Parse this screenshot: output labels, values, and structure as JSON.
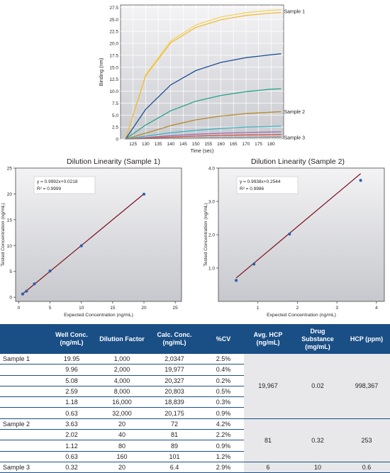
{
  "colors": {
    "table_header": "#1a4f86",
    "regression_line": "#7a1020",
    "points": "#2c5fae",
    "sensorgram": [
      "#f6d35a",
      "#f0bc3c",
      "#1f4f96",
      "#26a28c",
      "#b4892a",
      "#3fb5c4",
      "#9a6fb8",
      "#d0503c",
      "#888888"
    ]
  },
  "chart_data": [
    {
      "type": "line",
      "title": "",
      "xlabel": "Time (sec)",
      "ylabel": "Binding (nm)",
      "xlim": [
        120,
        185
      ],
      "ylim": [
        0,
        28
      ],
      "xticks": [
        125,
        130,
        135,
        140,
        145,
        150,
        155,
        160,
        165,
        170,
        175,
        180
      ],
      "yticks": [
        0,
        2.5,
        5.0,
        7.5,
        10.0,
        12.5,
        15.0,
        17.5,
        20.0,
        22.5,
        25.0,
        27.5
      ],
      "series": [
        {
          "x": [
            122,
            130,
            140,
            150,
            160,
            170,
            180,
            184
          ],
          "y": [
            0,
            13.4,
            20.5,
            23.8,
            25.5,
            26.4,
            26.9,
            27.0
          ],
          "color": "#f6d35a"
        },
        {
          "x": [
            122,
            130,
            140,
            150,
            160,
            170,
            180,
            184
          ],
          "y": [
            0,
            13.2,
            20.1,
            23.3,
            24.9,
            25.8,
            26.3,
            26.4
          ],
          "color": "#f0bc3c"
        },
        {
          "x": [
            122,
            130,
            140,
            150,
            160,
            170,
            180,
            184
          ],
          "y": [
            0,
            6.2,
            11.3,
            14.3,
            16.0,
            17.0,
            17.6,
            17.8
          ],
          "color": "#1f4f96"
        },
        {
          "x": [
            122,
            130,
            140,
            150,
            160,
            170,
            180,
            184
          ],
          "y": [
            0,
            2.9,
            5.9,
            7.9,
            9.1,
            9.9,
            10.4,
            10.5
          ],
          "color": "#26a28c"
        },
        {
          "x": [
            122,
            130,
            140,
            150,
            160,
            170,
            180,
            184
          ],
          "y": [
            0,
            1.2,
            2.8,
            4.0,
            4.8,
            5.3,
            5.6,
            5.7
          ],
          "color": "#b4892a"
        },
        {
          "x": [
            122,
            130,
            140,
            150,
            160,
            170,
            180,
            184
          ],
          "y": [
            0,
            0.6,
            1.3,
            1.8,
            2.2,
            2.5,
            2.6,
            2.7
          ],
          "color": "#3fb5c4"
        },
        {
          "x": [
            122,
            130,
            140,
            150,
            160,
            170,
            180,
            184
          ],
          "y": [
            0,
            0.3,
            0.7,
            1.0,
            1.2,
            1.35,
            1.45,
            1.5
          ],
          "color": "#9a6fb8"
        },
        {
          "x": [
            122,
            130,
            140,
            150,
            160,
            170,
            180,
            184
          ],
          "y": [
            0,
            0.2,
            0.4,
            0.6,
            0.75,
            0.85,
            0.9,
            0.95
          ],
          "color": "#d0503c"
        },
        {
          "x": [
            122,
            130,
            140,
            150,
            160,
            170,
            180,
            184
          ],
          "y": [
            0,
            0.08,
            0.15,
            0.22,
            0.3,
            0.35,
            0.4,
            0.42
          ],
          "color": "#888888"
        }
      ],
      "annotations": [
        {
          "text": "Sample 1",
          "x": 184,
          "y": 26.7
        },
        {
          "text": "Sample 2",
          "x": 184,
          "y": 5.7
        },
        {
          "text": "Sample 3",
          "x": 184,
          "y": 0.3
        }
      ]
    },
    {
      "type": "scatter",
      "title": "Dilution Linearity (Sample 1)",
      "xlabel": "Expected Concentration (ng/mL)",
      "ylabel": "Tested Concentration (ng/mL)",
      "xlim": [
        -0.5,
        26
      ],
      "ylim": [
        -0.8,
        25
      ],
      "xticks": [
        0,
        5,
        10,
        15,
        20,
        25
      ],
      "yticks": [
        0,
        5,
        10,
        15,
        20,
        25
      ],
      "x": [
        0.63,
        1.25,
        2.5,
        5,
        10,
        20
      ],
      "y": [
        0.63,
        1.18,
        2.59,
        5.08,
        9.96,
        19.95
      ],
      "fit": {
        "slope": 0.9992,
        "intercept": 0.0218,
        "x_range": [
          0.5,
          20
        ]
      },
      "equation": "y = 0.9992x+0.0218",
      "r2": "R² = 0.9999"
    },
    {
      "type": "scatter",
      "title": "Dilution Linearity (Sample 2)",
      "xlabel": "Expected Concentration (ng/mL)",
      "ylabel": "Tested Concentration (ng/mL)",
      "xlim": [
        0,
        4.2
      ],
      "ylim": [
        0,
        4.0
      ],
      "xticks": [
        1,
        2,
        3,
        4
      ],
      "yticks": [
        1.0,
        2.0,
        3.0,
        4.0
      ],
      "x": [
        0.45,
        0.9,
        1.8,
        3.6
      ],
      "y": [
        0.63,
        1.12,
        2.02,
        3.63
      ],
      "fit": {
        "slope": 0.9938,
        "intercept": 0.2544,
        "x_range": [
          0.45,
          3.6
        ]
      },
      "equation": "y = 0.9938x+0.2544",
      "r2": "R² = 0.9986"
    }
  ],
  "table": {
    "headers": [
      "",
      "Well Conc. (ng/mL)",
      "Dilution Factor",
      "Calc. Conc. (ng/mL)",
      "%CV",
      "Avg. HCP (ng/mL)",
      "Drug Substance (mg/mL)",
      "HCP (ppm)"
    ],
    "groups": [
      {
        "label": "Sample 1",
        "rows": [
          [
            "19.95",
            "1,000",
            "2,0347",
            "2.5%"
          ],
          [
            "9.96",
            "2,000",
            "19,977",
            "0.4%"
          ],
          [
            "5.08",
            "4,000",
            "20,327",
            "0.2%"
          ],
          [
            "2.59",
            "8,000",
            "20,803",
            "0.5%"
          ],
          [
            "1.18",
            "16,000",
            "18,839",
            "0.3%"
          ],
          [
            "0.63",
            "32,000",
            "20,175",
            "0.9%"
          ]
        ],
        "avg_hcp": "19,967",
        "drug_substance": "0.02",
        "hcp_ppm": "998,367"
      },
      {
        "label": "Sample 2",
        "rows": [
          [
            "3.63",
            "20",
            "72",
            "4.2%"
          ],
          [
            "2.02",
            "40",
            "81",
            "2.2%"
          ],
          [
            "1.12",
            "80",
            "89",
            "0.9%"
          ],
          [
            "0.63",
            "160",
            "101",
            "1.2%"
          ]
        ],
        "avg_hcp": "81",
        "drug_substance": "0.32",
        "hcp_ppm": "253"
      },
      {
        "label": "Sample 3",
        "rows": [
          [
            "0.32",
            "20",
            "6.4",
            "2.9%"
          ]
        ],
        "avg_hcp": "6",
        "drug_substance": "10",
        "hcp_ppm": "0.6"
      }
    ]
  }
}
